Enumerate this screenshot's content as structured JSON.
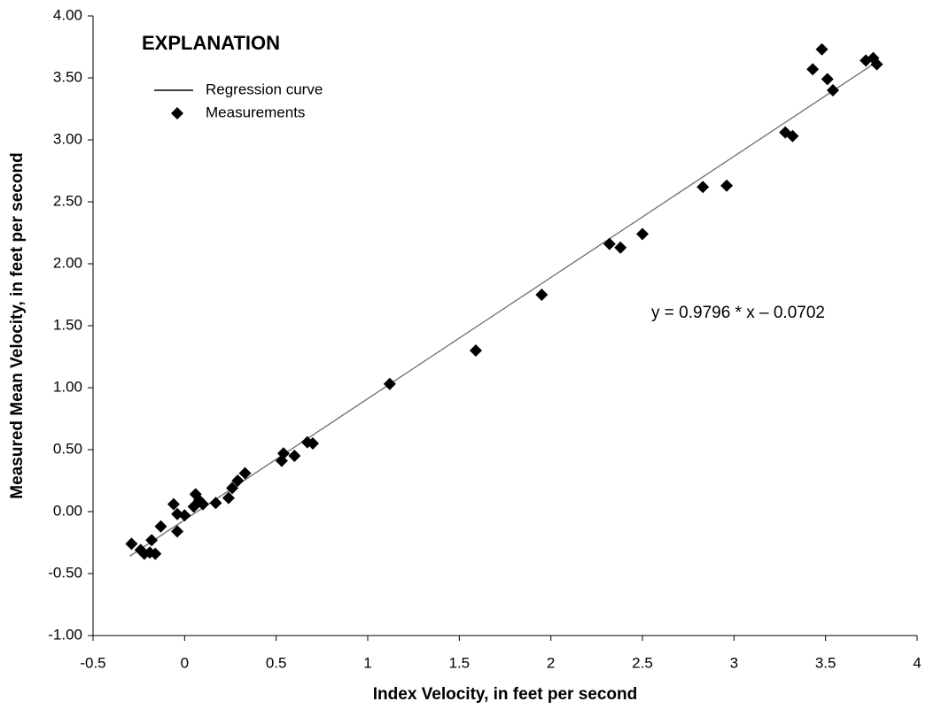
{
  "chart_data": {
    "type": "scatter",
    "explanation": "EXPLANATION",
    "annotation": "y = 0.9796  * x – 0.0702",
    "xlabel": "Index Velocity, in feet per second",
    "ylabel": "Measured Mean Velocity, in feet per second",
    "xlim": [
      -0.5,
      4
    ],
    "xticks": [
      -0.5,
      0,
      0.5,
      1,
      1.5,
      2,
      2.5,
      3,
      3.5,
      4
    ],
    "ylim": [
      -1,
      4
    ],
    "yticks": [
      {
        "value": -1,
        "label": "-1.00"
      },
      {
        "value": -0.5,
        "label": "-0.50"
      },
      {
        "value": 0,
        "label": "0.00"
      },
      {
        "value": 0.5,
        "label": "0.50"
      },
      {
        "value": 1,
        "label": "1.00"
      },
      {
        "value": 1.5,
        "label": "1.50"
      },
      {
        "value": 2,
        "label": "2.00"
      },
      {
        "value": 2.5,
        "label": "2.50"
      },
      {
        "value": 3,
        "label": "3.00"
      },
      {
        "value": 3.5,
        "label": "3.50"
      },
      {
        "value": 4,
        "label": "4.00"
      }
    ],
    "series": [
      {
        "name": "Regression curve",
        "type": "line",
        "color": "#6e6e6e",
        "x": [
          -0.3,
          3.77
        ],
        "values": [
          -0.36,
          3.62
        ]
      },
      {
        "name": "Measurements",
        "type": "scatter",
        "color": "#000000",
        "x": [
          -0.29,
          -0.24,
          -0.22,
          -0.19,
          -0.18,
          -0.16,
          -0.13,
          -0.06,
          -0.04,
          -0.04,
          0.0,
          0.05,
          0.06,
          0.08,
          0.1,
          0.17,
          0.24,
          0.26,
          0.29,
          0.33,
          0.53,
          0.54,
          0.6,
          0.67,
          0.7,
          1.12,
          1.59,
          1.95,
          2.32,
          2.38,
          2.5,
          2.83,
          2.96,
          3.28,
          3.32,
          3.43,
          3.48,
          3.51,
          3.54,
          3.72,
          3.76,
          3.78
        ],
        "values": [
          -0.26,
          -0.31,
          -0.34,
          -0.33,
          -0.23,
          -0.34,
          -0.12,
          0.06,
          -0.16,
          -0.02,
          -0.03,
          0.04,
          0.14,
          0.09,
          0.06,
          0.07,
          0.11,
          0.19,
          0.25,
          0.31,
          0.41,
          0.47,
          0.45,
          0.56,
          0.55,
          1.03,
          1.3,
          1.75,
          2.16,
          2.13,
          2.24,
          2.62,
          2.63,
          3.06,
          3.03,
          3.57,
          3.73,
          3.49,
          3.4,
          3.64,
          3.66,
          3.61
        ]
      }
    ]
  }
}
